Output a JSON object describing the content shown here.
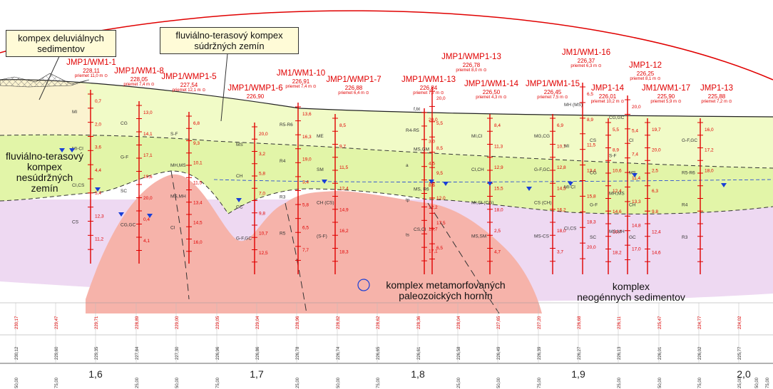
{
  "callouts": {
    "deluvial": "kompex deluviálnych\nsedimentov",
    "fluvial_cohesive": "fluviálno-terasový kompex\nsúdržných zemín"
  },
  "zones": {
    "noncohesive": "fluviálno-terasový\nkompex nesúdržných\nzemín",
    "metamorphic": "komplex metamorfovaných\npaleozoických hornín",
    "neogene": "komplex\nneogénnych sedimentov"
  },
  "boreholes": [
    {
      "name": "JMP1/WM1-1",
      "z": "228,11",
      "p": "priemet 11,0 m"
    },
    {
      "name": "JMP1/WM1-8",
      "z": "228,05",
      "p": "priemet 7,4 m"
    },
    {
      "name": "JMP1/WMP1-5",
      "z": "227,54",
      "p": "priemet 12,1 m"
    },
    {
      "name": "JMP1/WMP1-6",
      "z": "226,90",
      "p": ""
    },
    {
      "name": "JM1/WM1-10",
      "z": "226,91",
      "p": "priemet 7,4 m"
    },
    {
      "name": "JMP1/WMP1-7",
      "z": "226,88",
      "p": "priemet 6,4 m"
    },
    {
      "name": "JMP1/WM1-13",
      "z": "226,84",
      "p": "priemet 7,7 m"
    },
    {
      "name": "JMP1/WMP1-13",
      "z": "226,78",
      "p": "priemet 8,0 m"
    },
    {
      "name": "JMP1/WM1-14",
      "z": "226,50",
      "p": "priemet 4,3 m"
    },
    {
      "name": "JMP1/WM1-15",
      "z": "226,45",
      "p": "priemet 7,5 m"
    },
    {
      "name": "JM1/WM1-16",
      "z": "226,37",
      "p": "priemet 6,3 m"
    },
    {
      "name": "JMP1-14",
      "z": "226,01",
      "p": "priemet 10,2 m"
    },
    {
      "name": "JMP1-12",
      "z": "226,25",
      "p": "priemet 8,1 m"
    },
    {
      "name": "JM1/WM1-17",
      "z": "225,90",
      "p": "priemet 5,9 m"
    },
    {
      "name": "JMP1-13",
      "z": "225,88",
      "p": "priemet 7,2 m"
    }
  ],
  "soil_codes": [
    "MI",
    "MI-CI",
    "CI,CS",
    "CS",
    "CG",
    "G-F",
    "SC",
    "CG,GC",
    "S-F",
    "MH,MS",
    "MS,MH",
    "CI",
    "MS",
    "CH",
    "GC",
    "G-F,GC",
    "R5-R6",
    "R4",
    "R3",
    "R5",
    "ME",
    "SM",
    "CH (CS)",
    "(S-F)",
    "R4-R5",
    "a",
    "tp",
    "ts",
    "f,bt",
    "MS,GM",
    "MS, R6",
    "CS,CI",
    "MI,CI",
    "CI,CH",
    "MI,CI (CG)",
    "MS,SM",
    "MG,CG",
    "G-F,GC",
    "CS (CH)",
    "MS-CS",
    "MH (MS)"
  ],
  "depth_values": [
    "0,7",
    "2,0",
    "3,6",
    "4,4",
    "5,4",
    "12,3",
    "11,2",
    "13,0",
    "14,1",
    "17,1",
    "19,6",
    "20,0",
    "0,4",
    "4,1",
    "6,8",
    "9,3",
    "10,1",
    "11,5",
    "13,4",
    "14,5",
    "16,0",
    "20,0",
    "3,2",
    "5,8",
    "7,0",
    "9,8",
    "10,7",
    "12,5",
    "13,6",
    "16,3",
    "19,0",
    "3,4",
    "5,8",
    "6,5",
    "7,7",
    "8,5",
    "9,7",
    "11,5",
    "12,4",
    "14,9",
    "16,2",
    "18,3",
    "20,0",
    "3,0",
    "4,5",
    "8,6",
    "12,2",
    "15,7",
    "17,1",
    "20,0",
    "5,5",
    "8,5",
    "9,5",
    "12,0",
    "17,5",
    "6,5",
    "8,4",
    "11,3",
    "12,9",
    "15,5",
    "18,0",
    "2,5",
    "4,7",
    "6,9",
    "10,7",
    "12,8",
    "14,5",
    "16,2",
    "18,0",
    "3,7",
    "6,5",
    "8,9",
    "11,5",
    "13,4",
    "15,8",
    "18,3",
    "20,0",
    "5,5",
    "8,9",
    "10,6",
    "12,4",
    "14,6",
    "16,7",
    "18,2",
    "20,0",
    "5,4",
    "7,4",
    "11,4",
    "13,3",
    "14,8",
    "17,0",
    "19,7",
    "20,0",
    "2,5",
    "6,3",
    "9,8",
    "12,4",
    "14,6",
    "16,0",
    "17,2",
    "18,0"
  ],
  "elevations": [
    "230,17",
    "229,47",
    "229,71",
    "228,89",
    "229,00",
    "229,05",
    "229,04",
    "228,96",
    "228,82",
    "228,62",
    "228,36",
    "228,04",
    "227,65",
    "227,20",
    "226,68",
    "226,11",
    "225,47",
    "224,77",
    "224,02"
  ],
  "distances": [
    "230,12",
    "229,60",
    "229,35",
    "227,84",
    "227,30",
    "226,96",
    "226,86",
    "226,78",
    "226,74",
    "226,65",
    "226,61",
    "226,58",
    "226,49",
    "226,39",
    "226,27",
    "226,13",
    "226,01",
    "226,02",
    "225,77"
  ],
  "chainage_minor": [
    "50,00",
    "75,00",
    "25,00",
    "50,00",
    "75,00",
    "25,00",
    "50,00",
    "75,00",
    "25,00",
    "50,00",
    "75,00",
    "25,00",
    "50,00",
    "75,00",
    "25,00",
    "50,00",
    "75,00"
  ],
  "chainage_major": [
    "1,6",
    "1,7",
    "1,8",
    "1,9",
    "2,0"
  ],
  "colors": {
    "noncohesive": "#e6f7b0",
    "cohesive": "#f4fbcf",
    "deluvial": "#fbf3d0",
    "metamorphic": "#f6b3aa",
    "neogene": "#eed9f2",
    "borehole": "#e00000",
    "water": "#1a3fd6"
  }
}
